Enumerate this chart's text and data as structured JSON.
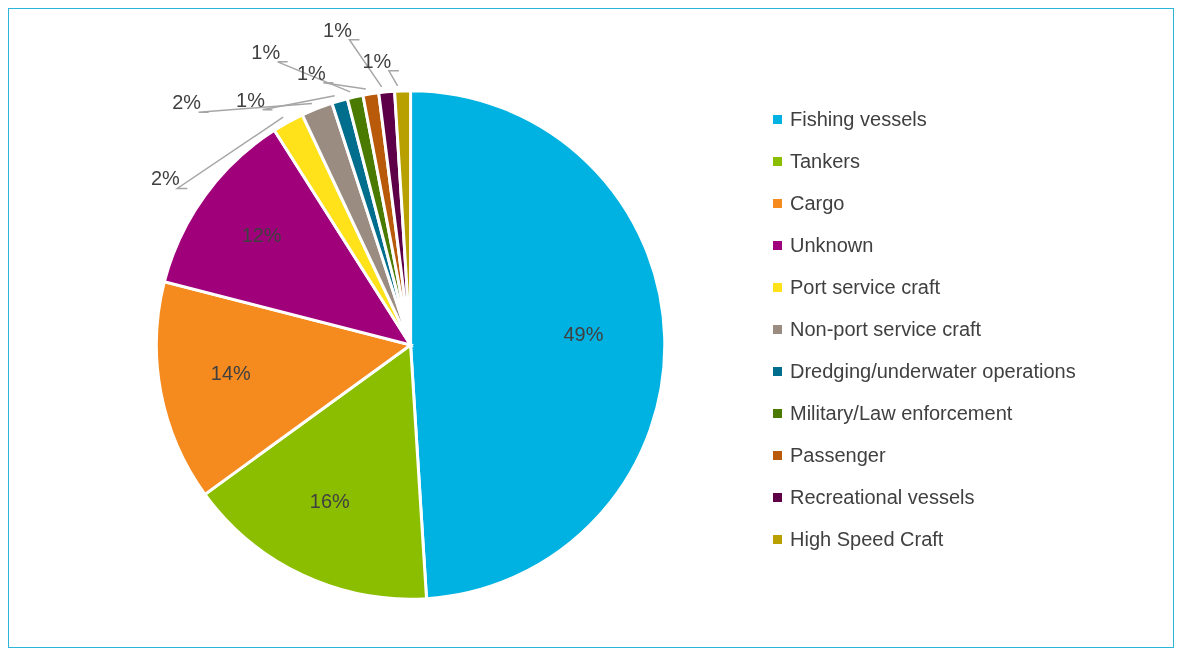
{
  "chart_data": {
    "type": "pie",
    "categories": [
      "Fishing vessels",
      "Tankers",
      "Cargo",
      "Unknown",
      "Port service craft",
      "Non-port service craft",
      "Dredging/underwater operations",
      "Military/Law enforcement",
      "Passenger",
      "Recreational vessels",
      "High Speed Craft"
    ],
    "values": [
      49,
      16,
      14,
      12,
      2,
      2,
      1,
      1,
      1,
      1,
      1
    ],
    "value_labels": [
      "49%",
      "16%",
      "14%",
      "12%",
      "2%",
      "2%",
      "1%",
      "1%",
      "1%",
      "1%",
      "1%"
    ],
    "colors": [
      "#00b2e1",
      "#8cbe00",
      "#f58a1f",
      "#a0007a",
      "#ffe21a",
      "#9a8c80",
      "#006e8c",
      "#4b7a00",
      "#b85a0a",
      "#5e0048",
      "#b8a000"
    ],
    "legend": "right"
  }
}
